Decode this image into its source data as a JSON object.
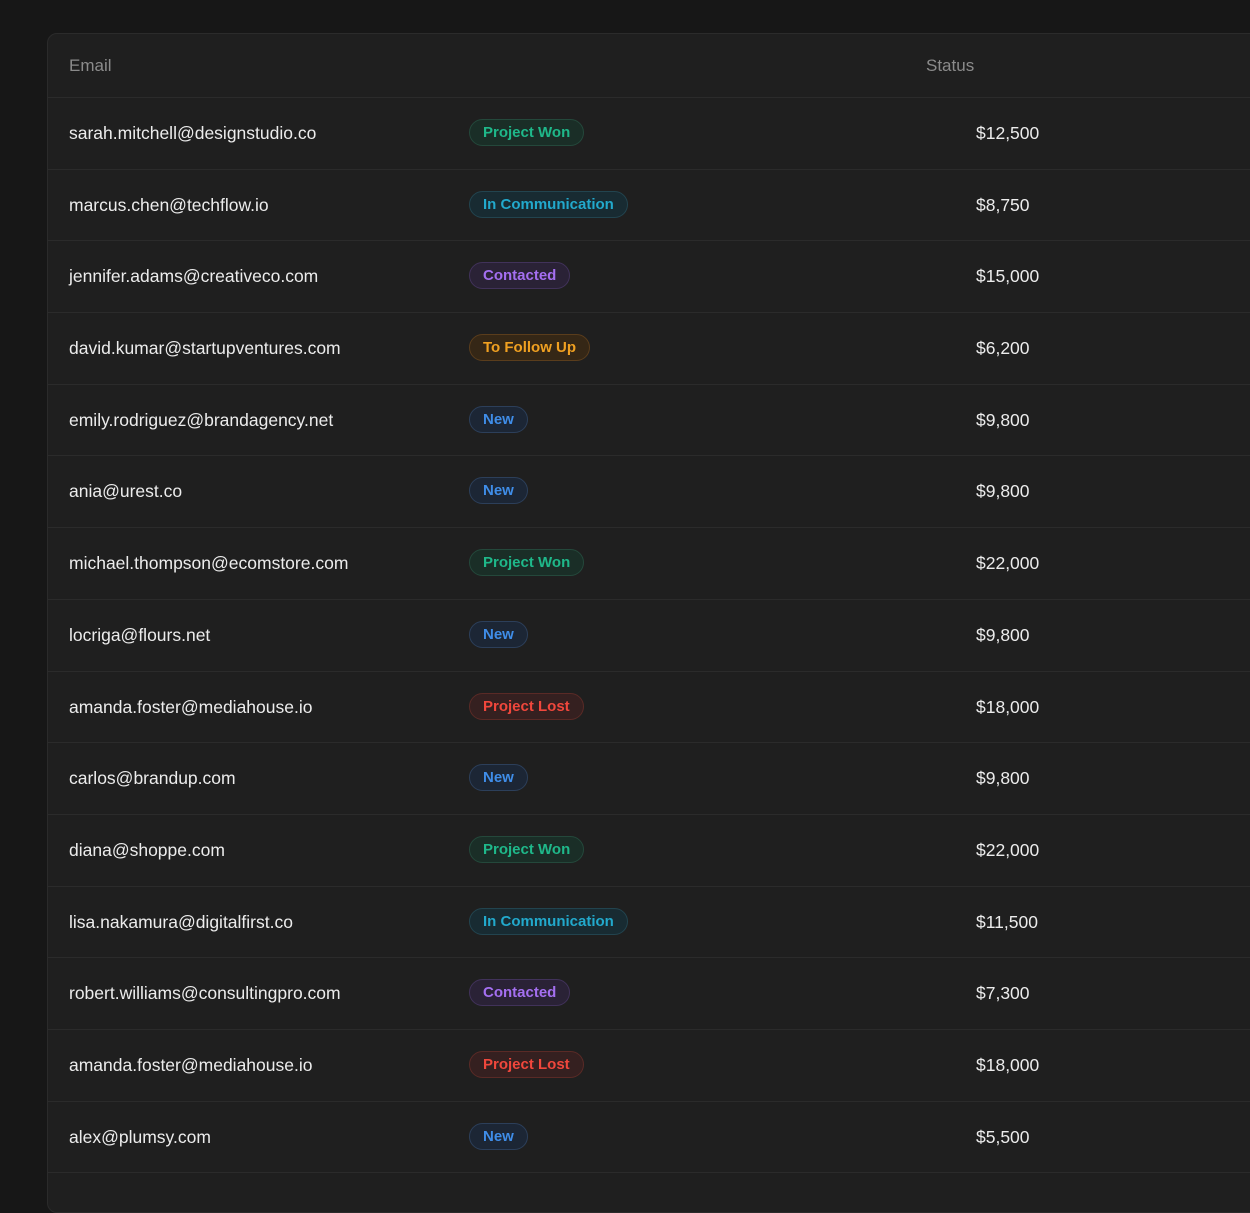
{
  "table": {
    "columns": {
      "email": "Email",
      "status": "Status"
    },
    "rows": [
      {
        "email": "sarah.mitchell@designstudio.co",
        "status": "Project Won",
        "status_key": "won",
        "value": "$12,500"
      },
      {
        "email": "marcus.chen@techflow.io",
        "status": "In Communication",
        "status_key": "comm",
        "value": "$8,750"
      },
      {
        "email": "jennifer.adams@creativeco.com",
        "status": "Contacted",
        "status_key": "cont",
        "value": "$15,000"
      },
      {
        "email": "david.kumar@startupventures.com",
        "status": "To Follow Up",
        "status_key": "follow",
        "value": "$6,200"
      },
      {
        "email": "emily.rodriguez@brandagency.net",
        "status": "New",
        "status_key": "new",
        "value": "$9,800"
      },
      {
        "email": "ania@urest.co",
        "status": "New",
        "status_key": "new",
        "value": "$9,800"
      },
      {
        "email": "michael.thompson@ecomstore.com",
        "status": "Project Won",
        "status_key": "won",
        "value": "$22,000"
      },
      {
        "email": "locriga@flours.net",
        "status": "New",
        "status_key": "new",
        "value": "$9,800"
      },
      {
        "email": "amanda.foster@mediahouse.io",
        "status": "Project Lost",
        "status_key": "lost",
        "value": "$18,000"
      },
      {
        "email": "carlos@brandup.com",
        "status": "New",
        "status_key": "new",
        "value": "$9,800"
      },
      {
        "email": "diana@shoppe.com",
        "status": "Project Won",
        "status_key": "won",
        "value": "$22,000"
      },
      {
        "email": "lisa.nakamura@digitalfirst.co",
        "status": "In Communication",
        "status_key": "comm",
        "value": "$11,500"
      },
      {
        "email": "robert.williams@consultingpro.com",
        "status": "Contacted",
        "status_key": "cont",
        "value": "$7,300"
      },
      {
        "email": "amanda.foster@mediahouse.io",
        "status": "Project Lost",
        "status_key": "lost",
        "value": "$18,000"
      },
      {
        "email": "alex@plumsy.com",
        "status": "New",
        "status_key": "new",
        "value": "$5,500"
      }
    ]
  },
  "status_colors": {
    "won": "#1fb88a",
    "comm": "#22a9cc",
    "cont": "#a46ff0",
    "follow": "#f0a021",
    "new": "#3f8de8",
    "lost": "#f0473c"
  }
}
